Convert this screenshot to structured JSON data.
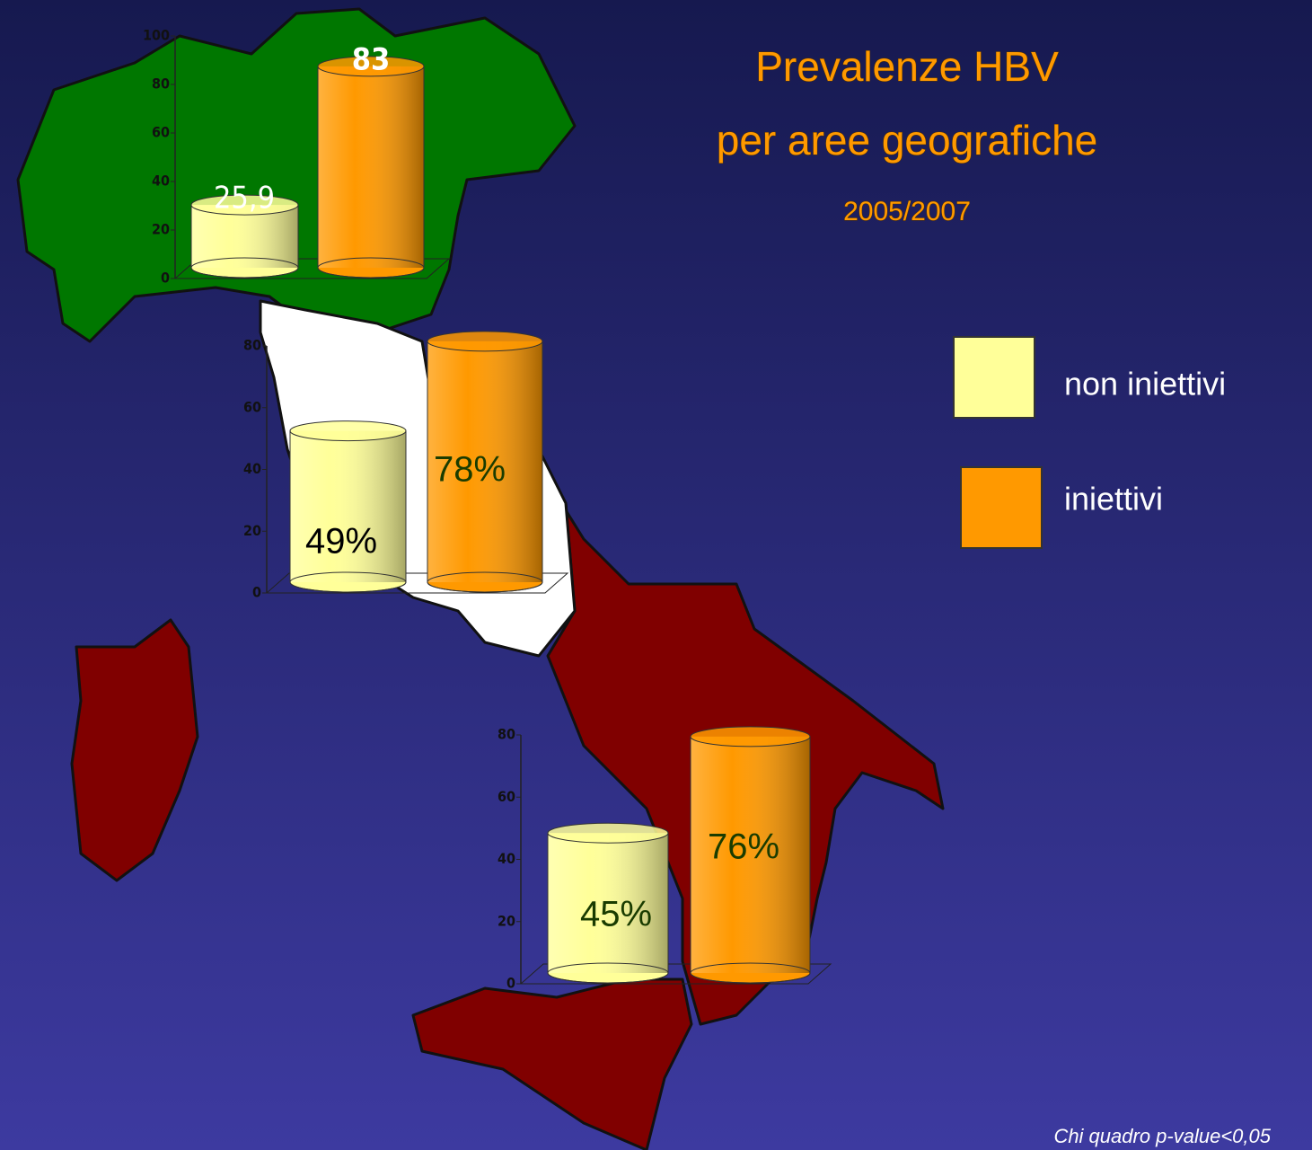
{
  "title_lines": [
    "Prevalenze HBV",
    "per aree geografiche"
  ],
  "subtitle": "2005/2007",
  "legend": [
    {
      "label": "non iniettivi",
      "color": "#ffff99"
    },
    {
      "label": "iniettivi",
      "color": "#ff9900"
    }
  ],
  "footnote": "Chi quadro p-value<0,05",
  "chart_data": [
    {
      "type": "bar",
      "values": [
        25.9,
        83
      ],
      "value_labels": [
        "25,9",
        "83"
      ],
      "ylim": [
        0,
        100
      ],
      "yticks": [
        0,
        20,
        40,
        60,
        80,
        100
      ]
    },
    {
      "type": "bar",
      "values": [
        49,
        78
      ],
      "value_labels": [
        "49%",
        "78%"
      ],
      "ylim": [
        0,
        80
      ],
      "yticks": [
        0,
        20,
        40,
        60,
        80
      ]
    },
    {
      "type": "bar",
      "values": [
        45,
        76
      ],
      "value_labels": [
        "45%",
        "76%"
      ],
      "ylim": [
        0,
        80
      ],
      "yticks": [
        0,
        20,
        40,
        60,
        80
      ]
    }
  ]
}
